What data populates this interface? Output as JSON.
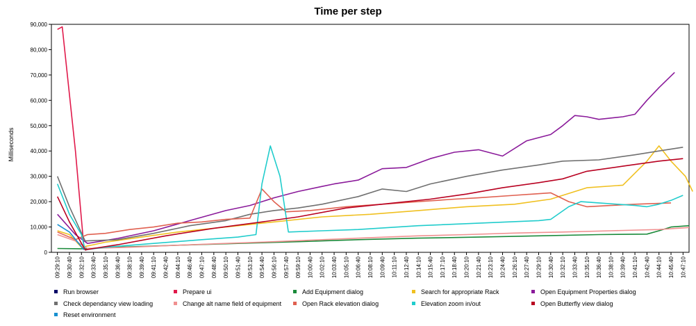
{
  "chart_data": {
    "type": "line",
    "title": "Time per step",
    "xlabel": "",
    "ylabel": "Milliseconds",
    "ylim": [
      0,
      90000
    ],
    "yticks": [
      0,
      10000,
      20000,
      30000,
      40000,
      50000,
      60000,
      70000,
      80000,
      90000
    ],
    "ytick_labels": [
      "0",
      "10,000",
      "20,000",
      "30,000",
      "40,000",
      "50,000",
      "60,000",
      "70,000",
      "80,000",
      "90,000"
    ],
    "x_labels": [
      "09:29:10",
      "09:30:40",
      "09:32:10",
      "09:33:40",
      "09:35:10",
      "09:36:40",
      "09:38:10",
      "09:39:40",
      "09:41:10",
      "09:42:40",
      "09:44:10",
      "09:46:40",
      "09:47:10",
      "09:48:40",
      "09:50:10",
      "09:51:40",
      "09:53:10",
      "09:54:40",
      "09:56:10",
      "09:57:40",
      "09:59:10",
      "10:00:40",
      "10:02:10",
      "10:03:40",
      "10:05:10",
      "10:06:40",
      "10:08:10",
      "10:09:40",
      "10:11:10",
      "10:12:40",
      "10:14:10",
      "10:15:40",
      "10:17:10",
      "10:18:40",
      "10:20:10",
      "10:21:40",
      "10:23:10",
      "10:24:40",
      "10:26:10",
      "10:27:40",
      "10:29:10",
      "10:30:40",
      "10:32:10",
      "10:33:40",
      "10:35:10",
      "10:36:40",
      "10:38:10",
      "10:39:40",
      "10:41:10",
      "10:42:40",
      "10:44:10",
      "10:45:40",
      "10:47:10"
    ],
    "grid": false,
    "legend": "bottom",
    "series": [
      {
        "name": "Run browser",
        "color": "#000066",
        "points": []
      },
      {
        "name": "Prepare ui",
        "color": "#e0194a",
        "points": [
          [
            0,
            88000
          ],
          [
            0.4,
            89000
          ],
          [
            1.5,
            40000
          ],
          [
            2.2,
            2000
          ],
          [
            2.4,
            700
          ]
        ]
      },
      {
        "name": "Add Equipment dialog",
        "color": "#1a8a3a",
        "points": [
          [
            0,
            1500
          ],
          [
            2,
            1400
          ],
          [
            5,
            2000
          ],
          [
            10,
            2800
          ],
          [
            15,
            3500
          ],
          [
            20,
            4200
          ],
          [
            25,
            5000
          ],
          [
            30,
            5600
          ],
          [
            35,
            6000
          ],
          [
            40,
            6500
          ],
          [
            45,
            7000
          ],
          [
            49,
            7200
          ],
          [
            50,
            8500
          ],
          [
            51,
            10000
          ],
          [
            52.5,
            10500
          ]
        ]
      },
      {
        "name": "Search for appropriate Rack",
        "color": "#f0c020",
        "points": [
          [
            0,
            8500
          ],
          [
            1,
            7000
          ],
          [
            2,
            2000
          ],
          [
            4,
            4000
          ],
          [
            7,
            6000
          ],
          [
            10,
            8000
          ],
          [
            14,
            10000
          ],
          [
            18,
            12000
          ],
          [
            22,
            14000
          ],
          [
            26,
            15000
          ],
          [
            30,
            16500
          ],
          [
            34,
            18000
          ],
          [
            38,
            19000
          ],
          [
            41,
            21000
          ],
          [
            44,
            25500
          ],
          [
            47,
            26500
          ],
          [
            49,
            36000
          ],
          [
            50,
            42000
          ],
          [
            51,
            36000
          ],
          [
            52.2,
            30000
          ],
          [
            52.8,
            24000
          ]
        ]
      },
      {
        "name": "Open Equipment Properties dialog",
        "color": "#8a1a9a",
        "points": [
          [
            0,
            15000
          ],
          [
            1.5,
            7000
          ],
          [
            2.5,
            3500
          ],
          [
            5,
            5500
          ],
          [
            8,
            8500
          ],
          [
            11,
            12500
          ],
          [
            14,
            16500
          ],
          [
            16,
            18500
          ],
          [
            18,
            21500
          ],
          [
            20,
            24000
          ],
          [
            22,
            26000
          ],
          [
            23,
            27000
          ],
          [
            25,
            28500
          ],
          [
            27,
            33000
          ],
          [
            29,
            33500
          ],
          [
            31,
            37000
          ],
          [
            33,
            39500
          ],
          [
            35,
            40500
          ],
          [
            37,
            38000
          ],
          [
            39,
            44000
          ],
          [
            41,
            46500
          ],
          [
            42,
            50000
          ],
          [
            43,
            54000
          ],
          [
            44,
            53500
          ],
          [
            45,
            52500
          ],
          [
            47,
            53500
          ],
          [
            48,
            54500
          ],
          [
            49,
            60000
          ],
          [
            50,
            65000
          ],
          [
            51.3,
            71000
          ]
        ]
      },
      {
        "name": "Check dependancy view loading",
        "color": "#707070",
        "points": [
          [
            0,
            30000
          ],
          [
            1,
            18000
          ],
          [
            2.3,
            4500
          ],
          [
            5,
            5000
          ],
          [
            8,
            7500
          ],
          [
            11,
            10500
          ],
          [
            14,
            12500
          ],
          [
            16,
            15000
          ],
          [
            18,
            16500
          ],
          [
            20,
            17500
          ],
          [
            22,
            19000
          ],
          [
            25,
            22000
          ],
          [
            27,
            25000
          ],
          [
            29,
            24000
          ],
          [
            31,
            27000
          ],
          [
            34,
            30000
          ],
          [
            37,
            32500
          ],
          [
            40,
            34500
          ],
          [
            42,
            36000
          ],
          [
            45,
            36500
          ],
          [
            48,
            38500
          ],
          [
            50,
            40000
          ],
          [
            52,
            41500
          ]
        ]
      },
      {
        "name": "Change alt name field of equipment",
        "color": "#f09090",
        "points": [
          [
            0,
            7000
          ],
          [
            1.5,
            4500
          ],
          [
            2.5,
            1500
          ],
          [
            6,
            2000
          ],
          [
            10,
            2800
          ],
          [
            14,
            3500
          ],
          [
            18,
            4200
          ],
          [
            22,
            5000
          ],
          [
            26,
            5800
          ],
          [
            30,
            6500
          ],
          [
            34,
            7000
          ],
          [
            38,
            7600
          ],
          [
            42,
            8000
          ],
          [
            46,
            8500
          ],
          [
            50,
            9000
          ],
          [
            52.5,
            9800
          ]
        ]
      },
      {
        "name": "Open Rack elevation dialog",
        "color": "#e06050",
        "points": [
          [
            0,
            8000
          ],
          [
            1.5,
            5000
          ],
          [
            2.5,
            7000
          ],
          [
            4,
            7500
          ],
          [
            6,
            9000
          ],
          [
            8,
            10000
          ],
          [
            10,
            11500
          ],
          [
            12,
            12000
          ],
          [
            14,
            13000
          ],
          [
            16,
            13500
          ],
          [
            17,
            25000
          ],
          [
            18,
            20000
          ],
          [
            19,
            16000
          ],
          [
            21,
            16500
          ],
          [
            24,
            18000
          ],
          [
            27,
            19000
          ],
          [
            30,
            20000
          ],
          [
            33,
            21000
          ],
          [
            35,
            21500
          ],
          [
            38,
            22500
          ],
          [
            41,
            23500
          ],
          [
            42.5,
            20000
          ],
          [
            44,
            18000
          ],
          [
            46,
            18500
          ],
          [
            48,
            19000
          ],
          [
            51,
            19500
          ]
        ]
      },
      {
        "name": "Elevation zoom in/out",
        "color": "#20cccc",
        "points": [
          [
            0,
            27000
          ],
          [
            1,
            15000
          ],
          [
            2,
            7000
          ],
          [
            2.3,
            1000
          ],
          [
            4,
            2000
          ],
          [
            8,
            3500
          ],
          [
            12,
            5000
          ],
          [
            15,
            6000
          ],
          [
            16.5,
            7000
          ],
          [
            17,
            27000
          ],
          [
            17.7,
            42000
          ],
          [
            18.5,
            30000
          ],
          [
            19.2,
            8000
          ],
          [
            22,
            8500
          ],
          [
            25,
            9000
          ],
          [
            30,
            10500
          ],
          [
            35,
            11500
          ],
          [
            40,
            12500
          ],
          [
            41,
            13000
          ],
          [
            42.5,
            18000
          ],
          [
            43.5,
            20000
          ],
          [
            45,
            19500
          ],
          [
            48,
            18500
          ],
          [
            49,
            18000
          ],
          [
            50,
            19000
          ],
          [
            51,
            20500
          ],
          [
            52,
            22500
          ]
        ]
      },
      {
        "name": "Open Butterfly view dialog",
        "color": "#b80020",
        "points": [
          [
            0,
            22000
          ],
          [
            1,
            12000
          ],
          [
            2.3,
            1000
          ],
          [
            5,
            3000
          ],
          [
            9,
            6500
          ],
          [
            13,
            9500
          ],
          [
            17,
            12000
          ],
          [
            20,
            14000
          ],
          [
            24,
            17500
          ],
          [
            28,
            19500
          ],
          [
            31,
            21000
          ],
          [
            34,
            23000
          ],
          [
            37,
            25500
          ],
          [
            40,
            27500
          ],
          [
            42,
            29000
          ],
          [
            44,
            32000
          ],
          [
            47,
            34000
          ],
          [
            50,
            36000
          ],
          [
            52,
            37000
          ]
        ]
      },
      {
        "name": "Reset environment",
        "color": "#1890d0",
        "points": [
          [
            0,
            11000
          ],
          [
            1,
            8000
          ],
          [
            2.2,
            1000
          ]
        ]
      }
    ]
  }
}
